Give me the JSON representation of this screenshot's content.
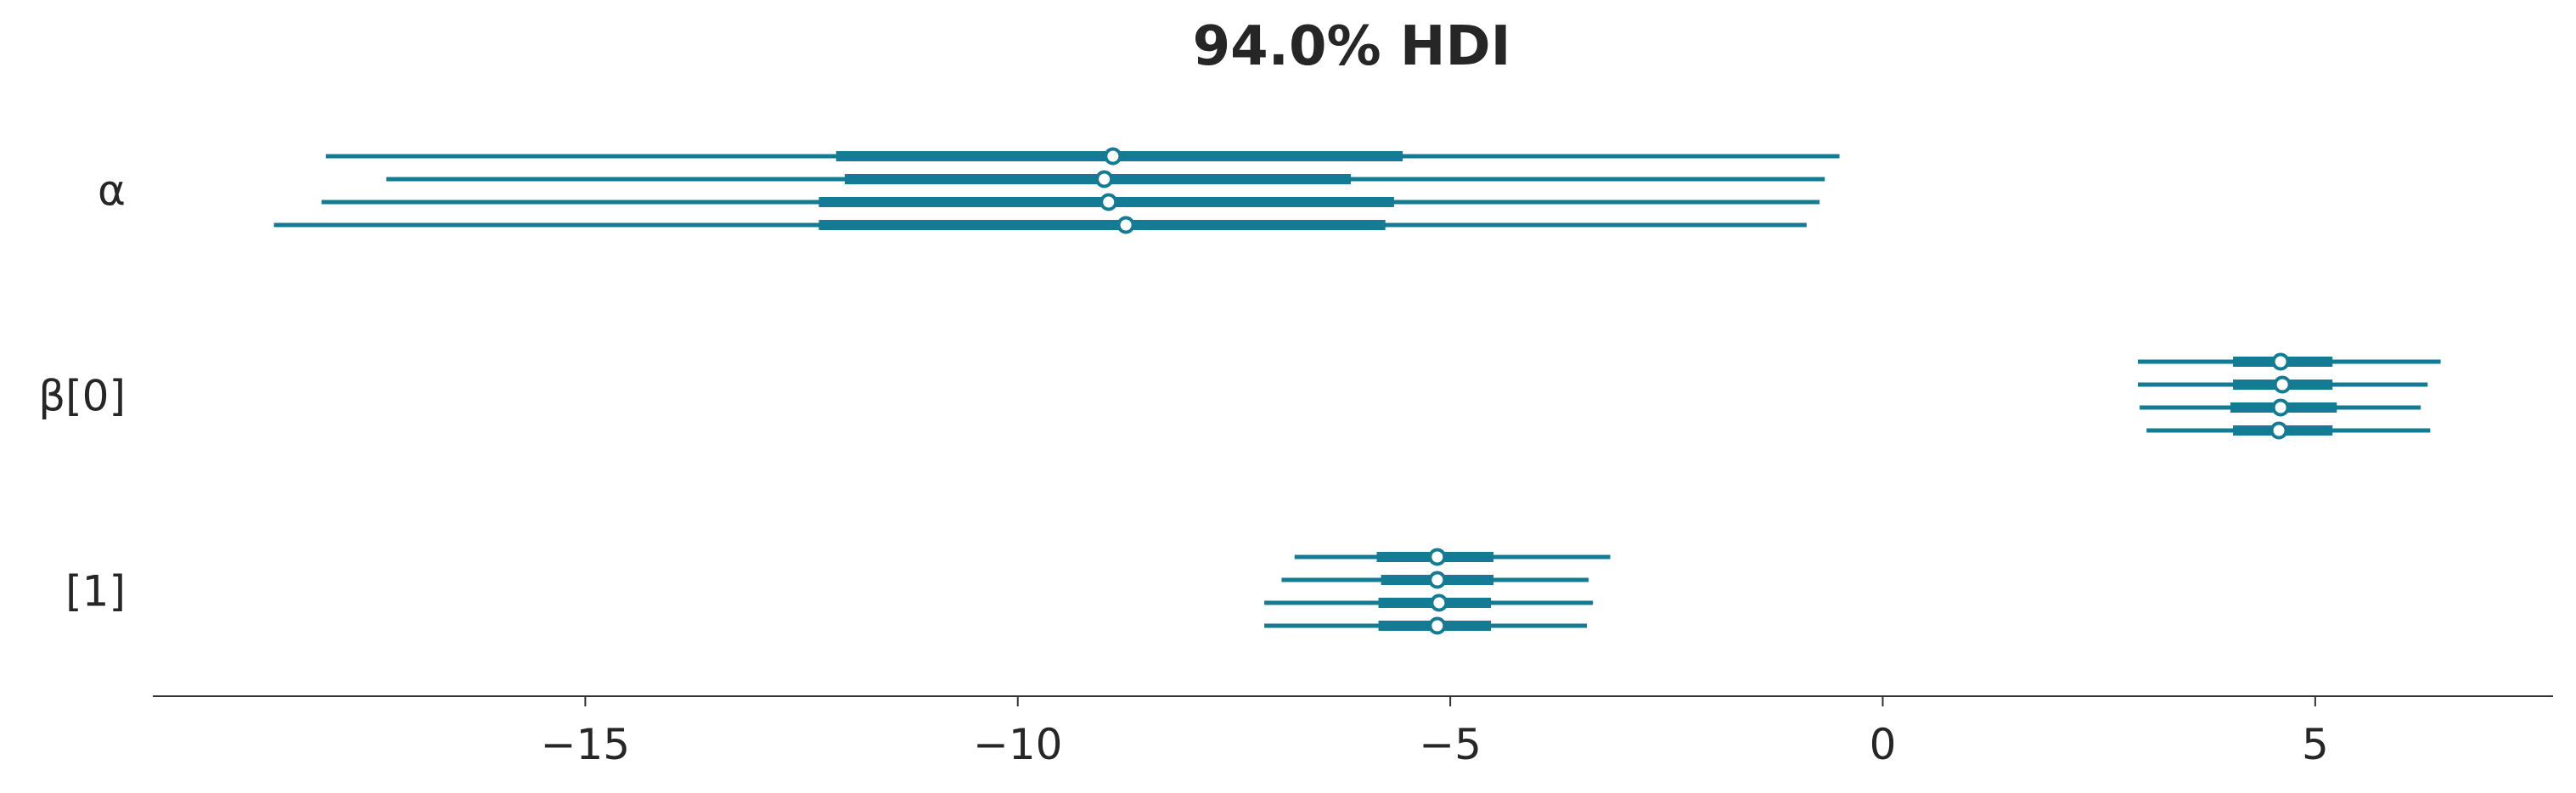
{
  "chart_data": {
    "type": "forest",
    "title": "94.0% HDI",
    "xlabel": "",
    "ylabel": "",
    "xlim": [
      -20.0,
      7.75
    ],
    "xticks": [
      {
        "value": -15,
        "label": "−15"
      },
      {
        "value": -10,
        "label": "−10"
      },
      {
        "value": -5,
        "label": "−5"
      },
      {
        "value": 0,
        "label": "0"
      },
      {
        "value": 5,
        "label": "5"
      }
    ],
    "grid": false,
    "legend": "none",
    "color": "#137b94",
    "rows": [
      {
        "label": "α",
        "chains": [
          {
            "hdi_low": -18.0,
            "hdi_high": -0.5,
            "iqr_low": -12.1,
            "iqr_high": -5.55,
            "median": -8.9
          },
          {
            "hdi_low": -17.3,
            "hdi_high": -0.67,
            "iqr_low": -12.0,
            "iqr_high": -6.15,
            "median": -9.0
          },
          {
            "hdi_low": -18.05,
            "hdi_high": -0.73,
            "iqr_low": -12.3,
            "iqr_high": -5.65,
            "median": -8.95
          },
          {
            "hdi_low": -18.6,
            "hdi_high": -0.88,
            "iqr_low": -12.3,
            "iqr_high": -5.75,
            "median": -8.75
          }
        ]
      },
      {
        "label": "β[0]",
        "chains": [
          {
            "hdi_low": 2.95,
            "hdi_high": 6.45,
            "iqr_low": 4.05,
            "iqr_high": 5.2,
            "median": 4.6
          },
          {
            "hdi_low": 2.95,
            "hdi_high": 6.3,
            "iqr_low": 4.05,
            "iqr_high": 5.2,
            "median": 4.62
          },
          {
            "hdi_low": 2.97,
            "hdi_high": 6.22,
            "iqr_low": 4.02,
            "iqr_high": 5.25,
            "median": 4.6
          },
          {
            "hdi_low": 3.05,
            "hdi_high": 6.33,
            "iqr_low": 4.05,
            "iqr_high": 5.2,
            "median": 4.58
          }
        ]
      },
      {
        "label": "[1]",
        "chains": [
          {
            "hdi_low": -6.8,
            "hdi_high": -3.15,
            "iqr_low": -5.85,
            "iqr_high": -4.5,
            "median": -5.15
          },
          {
            "hdi_low": -6.95,
            "hdi_high": -3.4,
            "iqr_low": -5.8,
            "iqr_high": -4.5,
            "median": -5.15
          },
          {
            "hdi_low": -7.15,
            "hdi_high": -3.35,
            "iqr_low": -5.83,
            "iqr_high": -4.53,
            "median": -5.13
          },
          {
            "hdi_low": -7.15,
            "hdi_high": -3.42,
            "iqr_low": -5.83,
            "iqr_high": -4.53,
            "median": -5.15
          }
        ]
      }
    ]
  }
}
